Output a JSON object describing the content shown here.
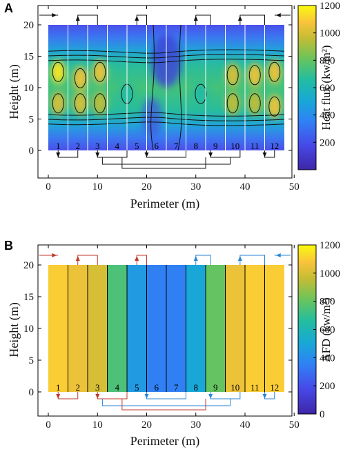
{
  "panels": [
    {
      "letter": "A",
      "chart_data": {
        "type": "heatmap",
        "subtype": "contour",
        "xlabel": "Perimeter (m)",
        "ylabel": "Height (m)",
        "xlim": [
          -4,
          52
        ],
        "ylim": [
          -4.5,
          23
        ],
        "xticks": [
          0,
          10,
          20,
          30,
          40,
          50
        ],
        "yticks": [
          0,
          5,
          10,
          15,
          20
        ],
        "extent": {
          "x": [
            0,
            48
          ],
          "y": [
            0,
            20
          ]
        },
        "panel_dividers_x": [
          4,
          8,
          12,
          16,
          20,
          24,
          28,
          32,
          36,
          40,
          44
        ],
        "panel_numbers": [
          "1",
          "2",
          "3",
          "4",
          "5",
          "6",
          "7",
          "8",
          "9",
          "10",
          "11",
          "12"
        ],
        "hot_spots": [
          {
            "x": 2,
            "y": 12.5,
            "peak": 1150
          },
          {
            "x": 6.5,
            "y": 11.5,
            "peak": 1050
          },
          {
            "x": 10.5,
            "y": 12.5,
            "peak": 1050
          },
          {
            "x": 2,
            "y": 7.5,
            "peak": 1000
          },
          {
            "x": 6.5,
            "y": 7.5,
            "peak": 1000
          },
          {
            "x": 10.5,
            "y": 7.5,
            "peak": 950
          },
          {
            "x": 37.5,
            "y": 12,
            "peak": 1000
          },
          {
            "x": 42,
            "y": 12,
            "peak": 1050
          },
          {
            "x": 46,
            "y": 12.5,
            "peak": 1050
          },
          {
            "x": 37.5,
            "y": 7.5,
            "peak": 950
          },
          {
            "x": 42,
            "y": 7.5,
            "peak": 950
          },
          {
            "x": 46,
            "y": 7,
            "peak": 1050
          },
          {
            "x": 16,
            "y": 9,
            "peak": 650
          },
          {
            "x": 31,
            "y": 9,
            "peak": 650
          }
        ],
        "colorbar": {
          "label": "Heat flux (kw/m²)",
          "ticks": [
            200,
            400,
            600,
            800,
            1000,
            1200
          ],
          "range": [
            0,
            1200
          ],
          "colormap": "parula"
        }
      }
    },
    {
      "letter": "B",
      "chart_data": {
        "type": "heatmap",
        "xlabel": "Perimeter (m)",
        "ylabel": "Height (m)",
        "xlim": [
          -4,
          52
        ],
        "ylim": [
          -4.5,
          23
        ],
        "xticks": [
          0,
          10,
          20,
          30,
          40,
          50
        ],
        "yticks": [
          0,
          5,
          10,
          15,
          20
        ],
        "extent": {
          "x": [
            0,
            48
          ],
          "y": [
            0,
            20
          ]
        },
        "panel_dividers_x": [
          4,
          8,
          12,
          16,
          20,
          24,
          28,
          32,
          36,
          40,
          44
        ],
        "panel_numbers": [
          "1",
          "2",
          "3",
          "4",
          "5",
          "6",
          "7",
          "8",
          "9",
          "10",
          "11",
          "12"
        ],
        "strip_values": [
          1100,
          1050,
          1000,
          750,
          450,
          350,
          350,
          500,
          800,
          1050,
          1100,
          1100
        ],
        "colorbar": {
          "label": "AFD (kw/m²)",
          "ticks": [
            0,
            200,
            400,
            600,
            800,
            1000,
            1200
          ],
          "range": [
            0,
            1200
          ],
          "colormap": "parula"
        }
      }
    }
  ]
}
